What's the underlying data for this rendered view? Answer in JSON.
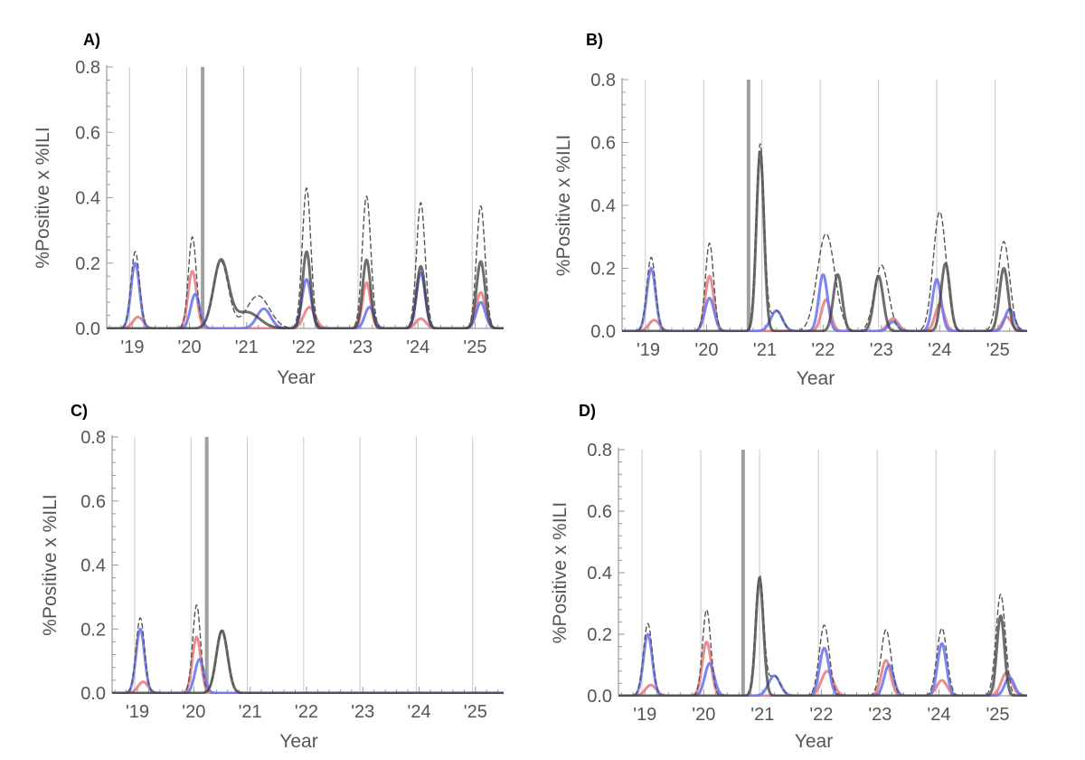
{
  "colors": {
    "grid": "#c8c8c8",
    "intervention": "#a0a0a0",
    "axis": "#9a9a9a",
    "total": "#555555",
    "red": "#e8797a",
    "blue": "#6f78ee",
    "dark": "#3c3c3c",
    "darkred": "#8c2f3c"
  },
  "chart_data": [
    {
      "type": "line",
      "panel_label": "A)",
      "xlabel": "Year",
      "ylabel": "%Positive x %ILI",
      "xlim": [
        2018.55,
        2025.5
      ],
      "ylim": [
        0,
        0.8
      ],
      "y_ticks": [
        0.0,
        0.2,
        0.4,
        0.6,
        0.8
      ],
      "y_tick_labels": [
        "0.0",
        "0.2",
        "0.4",
        "0.6",
        "0.8"
      ],
      "x_ticks": [
        2019,
        2020,
        2021,
        2022,
        2023,
        2024,
        2025
      ],
      "x_tick_labels": [
        "'19",
        "'20",
        "'21",
        "'22",
        "'23",
        "'24",
        "'25"
      ],
      "season_lines": [
        2018.95,
        2019.95,
        2020.95,
        2021.95,
        2022.95,
        2023.95,
        2024.95
      ],
      "intervention_x": 2020.23,
      "series": [
        {
          "style": "red",
          "peaks": [
            [
              2019.1,
              0.035,
              0.09
            ],
            [
              2020.05,
              0.175,
              0.075
            ],
            [
              2022.1,
              0.065,
              0.1
            ],
            [
              2023.1,
              0.14,
              0.07
            ],
            [
              2024.05,
              0.03,
              0.09
            ],
            [
              2025.1,
              0.11,
              0.08
            ]
          ]
        },
        {
          "style": "blue",
          "peaks": [
            [
              2019.05,
              0.2,
              0.075
            ],
            [
              2020.1,
              0.105,
              0.08
            ],
            [
              2021.3,
              0.06,
              0.12
            ],
            [
              2022.05,
              0.15,
              0.08
            ],
            [
              2023.15,
              0.065,
              0.08
            ],
            [
              2024.05,
              0.17,
              0.075
            ],
            [
              2025.1,
              0.08,
              0.08
            ]
          ]
        },
        {
          "style": "dark",
          "peaks": [
            [
              2020.55,
              0.205,
              0.13
            ],
            [
              2021.0,
              0.05,
              0.22
            ],
            [
              2022.05,
              0.235,
              0.07
            ],
            [
              2023.1,
              0.21,
              0.07
            ],
            [
              2024.05,
              0.19,
              0.075
            ],
            [
              2025.1,
              0.205,
              0.075
            ]
          ]
        },
        {
          "style": "total",
          "peaks": [
            [
              2019.05,
              0.235,
              0.075
            ],
            [
              2020.05,
              0.28,
              0.07
            ],
            [
              2020.55,
              0.205,
              0.13
            ],
            [
              2021.2,
              0.1,
              0.2
            ],
            [
              2022.05,
              0.43,
              0.075
            ],
            [
              2023.1,
              0.405,
              0.075
            ],
            [
              2024.05,
              0.385,
              0.075
            ],
            [
              2025.1,
              0.375,
              0.075
            ]
          ]
        }
      ]
    },
    {
      "type": "line",
      "panel_label": "B)",
      "xlabel": "Year",
      "ylabel": "%Positive x %ILI",
      "xlim": [
        2018.55,
        2025.5
      ],
      "ylim": [
        0,
        0.8
      ],
      "y_ticks": [
        0.0,
        0.2,
        0.4,
        0.6,
        0.8
      ],
      "y_tick_labels": [
        "0.0",
        "0.2",
        "0.4",
        "0.6",
        "0.8"
      ],
      "x_ticks": [
        2019,
        2020,
        2021,
        2022,
        2023,
        2024,
        2025
      ],
      "x_tick_labels": [
        "'19",
        "'20",
        "'21",
        "'22",
        "'23",
        "'24",
        "'25"
      ],
      "season_lines": [
        2018.95,
        2019.95,
        2020.95,
        2021.95,
        2022.95,
        2023.95,
        2024.95
      ],
      "intervention_x": 2020.72,
      "series": [
        {
          "style": "red",
          "peaks": [
            [
              2019.1,
              0.035,
              0.09
            ],
            [
              2020.05,
              0.175,
              0.075
            ],
            [
              2022.05,
              0.1,
              0.08
            ],
            [
              2023.2,
              0.04,
              0.09
            ],
            [
              2024.0,
              0.085,
              0.08
            ],
            [
              2025.15,
              0.045,
              0.08
            ]
          ]
        },
        {
          "style": "blue",
          "peaks": [
            [
              2019.05,
              0.2,
              0.075
            ],
            [
              2020.05,
              0.105,
              0.08
            ],
            [
              2021.2,
              0.065,
              0.1
            ],
            [
              2022.0,
              0.18,
              0.075
            ],
            [
              2023.2,
              0.03,
              0.08
            ],
            [
              2023.95,
              0.165,
              0.075
            ],
            [
              2025.2,
              0.07,
              0.08
            ]
          ]
        },
        {
          "style": "dark",
          "peaks": [
            [
              2020.92,
              0.57,
              0.065
            ],
            [
              2022.25,
              0.18,
              0.075
            ],
            [
              2022.95,
              0.175,
              0.08
            ],
            [
              2024.1,
              0.215,
              0.075
            ],
            [
              2025.1,
              0.2,
              0.075
            ]
          ]
        },
        {
          "style": "total",
          "peaks": [
            [
              2019.05,
              0.235,
              0.075
            ],
            [
              2020.05,
              0.28,
              0.07
            ],
            [
              2020.92,
              0.595,
              0.07
            ],
            [
              2021.2,
              0.065,
              0.1
            ],
            [
              2022.05,
              0.31,
              0.15
            ],
            [
              2023.0,
              0.21,
              0.12
            ],
            [
              2024.0,
              0.38,
              0.11
            ],
            [
              2025.1,
              0.285,
              0.1
            ]
          ]
        }
      ]
    },
    {
      "type": "line",
      "panel_label": "C)",
      "xlabel": "Year",
      "ylabel": "%Positive x %ILI",
      "xlim": [
        2018.55,
        2025.5
      ],
      "ylim": [
        0,
        0.8
      ],
      "y_ticks": [
        0.0,
        0.2,
        0.4,
        0.6,
        0.8
      ],
      "y_tick_labels": [
        "0.0",
        "0.2",
        "0.4",
        "0.6",
        "0.8"
      ],
      "x_ticks": [
        2019,
        2020,
        2021,
        2022,
        2023,
        2024,
        2025
      ],
      "x_tick_labels": [
        "'19",
        "'20",
        "'21",
        "'22",
        "'23",
        "'24",
        "'25"
      ],
      "season_lines": [
        2018.95,
        2019.95,
        2020.95,
        2021.95,
        2022.95,
        2023.95,
        2024.95
      ],
      "intervention_x": 2020.23,
      "series": [
        {
          "style": "red",
          "peaks": [
            [
              2019.1,
              0.035,
              0.09
            ],
            [
              2020.05,
              0.175,
              0.075
            ]
          ]
        },
        {
          "style": "blue",
          "peaks": [
            [
              2019.05,
              0.2,
              0.075
            ],
            [
              2020.1,
              0.105,
              0.08
            ]
          ]
        },
        {
          "style": "dark",
          "peaks": [
            [
              2020.5,
              0.195,
              0.1
            ]
          ]
        },
        {
          "style": "total",
          "peaks": [
            [
              2019.05,
              0.235,
              0.075
            ],
            [
              2020.05,
              0.275,
              0.07
            ],
            [
              2020.5,
              0.195,
              0.1
            ]
          ]
        }
      ]
    },
    {
      "type": "line",
      "panel_label": "D)",
      "xlabel": "Year",
      "ylabel": "%Positive x %ILI",
      "xlim": [
        2018.55,
        2025.5
      ],
      "ylim": [
        0,
        0.8
      ],
      "y_ticks": [
        0.0,
        0.2,
        0.4,
        0.6,
        0.8
      ],
      "y_tick_labels": [
        "0.0",
        "0.2",
        "0.4",
        "0.6",
        "0.8"
      ],
      "x_ticks": [
        2019,
        2020,
        2021,
        2022,
        2023,
        2024,
        2025
      ],
      "x_tick_labels": [
        "'19",
        "'20",
        "'21",
        "'22",
        "'23",
        "'24",
        "'25"
      ],
      "season_lines": [
        2018.95,
        2019.95,
        2020.95,
        2021.95,
        2022.95,
        2023.95,
        2024.95
      ],
      "intervention_x": 2020.67,
      "series": [
        {
          "style": "red",
          "peaks": [
            [
              2019.1,
              0.035,
              0.09
            ],
            [
              2020.05,
              0.175,
              0.075
            ],
            [
              2022.1,
              0.08,
              0.1
            ],
            [
              2023.1,
              0.115,
              0.08
            ],
            [
              2024.05,
              0.05,
              0.09
            ],
            [
              2025.15,
              0.075,
              0.09
            ]
          ]
        },
        {
          "style": "blue",
          "peaks": [
            [
              2019.05,
              0.2,
              0.075
            ],
            [
              2020.1,
              0.105,
              0.08
            ],
            [
              2021.2,
              0.065,
              0.1
            ],
            [
              2022.05,
              0.155,
              0.08
            ],
            [
              2023.15,
              0.1,
              0.08
            ],
            [
              2024.05,
              0.17,
              0.075
            ],
            [
              2025.2,
              0.06,
              0.08
            ]
          ]
        },
        {
          "style": "dark",
          "peaks": [
            [
              2020.95,
              0.38,
              0.065
            ],
            [
              2025.05,
              0.26,
              0.065
            ]
          ]
        },
        {
          "style": "total",
          "peaks": [
            [
              2019.05,
              0.235,
              0.075
            ],
            [
              2020.05,
              0.28,
              0.07
            ],
            [
              2020.95,
              0.39,
              0.07
            ],
            [
              2021.2,
              0.065,
              0.1
            ],
            [
              2022.05,
              0.23,
              0.085
            ],
            [
              2023.1,
              0.215,
              0.085
            ],
            [
              2024.05,
              0.22,
              0.085
            ],
            [
              2025.05,
              0.33,
              0.08
            ]
          ]
        }
      ]
    }
  ]
}
